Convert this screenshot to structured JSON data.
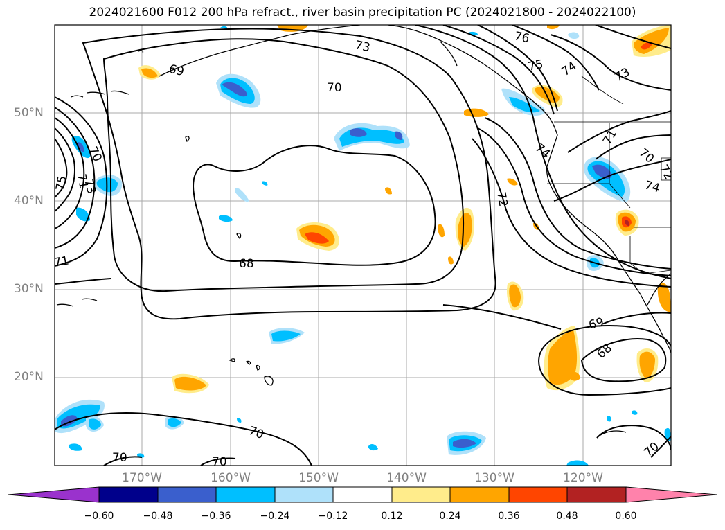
{
  "title": "2024021600 F012 200 hPa refract., river basin precipitation PC (2024021800 - 2024022100)",
  "lat_labels": [
    "50°N",
    "40°N",
    "30°N",
    "20°N"
  ],
  "lon_labels": [
    "170°W",
    "160°W",
    "150°W",
    "140°W",
    "130°W",
    "120°W"
  ],
  "contour_labels": [
    "76",
    "73",
    "75",
    "74",
    "73",
    "69",
    "70",
    "70",
    "71",
    "75",
    "74",
    "73",
    "71",
    "72",
    "74",
    "71",
    "70",
    "72",
    "68",
    "69",
    "68",
    "70",
    "70",
    "70",
    "70"
  ],
  "colorbar": {
    "ticks": [
      "−0.60",
      "−0.48",
      "−0.36",
      "−0.24",
      "−0.12",
      "0.12",
      "0.24",
      "0.36",
      "0.48",
      "0.60"
    ],
    "colors": [
      "#9a32cd",
      "#00008b",
      "#3a5fcd",
      "#00bfff",
      "#afe1fa",
      "#ffffff",
      "#ffec8b",
      "#ffa500",
      "#ff4500",
      "#b22222",
      "#ff82ab"
    ]
  },
  "shading_colors": {
    "blue_light": "#afe1fa",
    "blue": "#00bfff",
    "blue_dark": "#3a5fcd",
    "purple": "#7b3fc9",
    "yellow": "#ffec8b",
    "orange": "#ffa500",
    "red_orange": "#ff4500",
    "dark_red": "#b22222"
  }
}
